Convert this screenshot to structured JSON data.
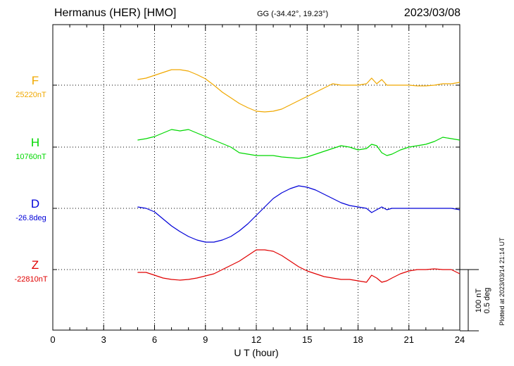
{
  "header": {
    "station": "Hermanus (HER)  [HMO]",
    "coords": "GG (-34.42°,  19.23°)",
    "date": "2023/03/08"
  },
  "scale_bar": {
    "line1": "100 nT",
    "line2": "0.5 deg"
  },
  "plotted_note": "Plotted at 2023/03/14 21:14 UT",
  "chart_data": {
    "type": "line",
    "xlabel": "U T (hour)",
    "xlim": [
      0,
      24
    ],
    "xticks": [
      "0",
      "3",
      "6",
      "9",
      "12",
      "15",
      "18",
      "21",
      "24"
    ],
    "grid": true,
    "series": [
      {
        "name": "F",
        "baseline_label": "25220nT",
        "color": "#f0a800",
        "x": [
          5,
          5.5,
          6,
          6.5,
          7,
          7.5,
          8,
          8.5,
          9,
          9.5,
          10,
          10.5,
          11,
          11.5,
          12,
          12.5,
          13,
          13.5,
          14,
          14.5,
          15,
          15.5,
          16,
          16.5,
          17,
          17.5,
          18,
          18.5,
          18.8,
          19.1,
          19.4,
          19.7,
          20,
          20.5,
          21,
          21.5,
          22,
          22.5,
          23,
          23.5,
          24
        ],
        "y": [
          8,
          10,
          14,
          18,
          22,
          22,
          20,
          15,
          9,
          0,
          -10,
          -18,
          -26,
          -32,
          -37,
          -38,
          -37,
          -34,
          -28,
          -22,
          -16,
          -10,
          -4,
          2,
          0,
          0,
          0,
          2,
          10,
          2,
          8,
          0,
          0,
          0,
          0,
          -1,
          -1,
          0,
          2,
          2,
          4
        ]
      },
      {
        "name": "H",
        "baseline_label": "10760nT",
        "color": "#00d800",
        "x": [
          5,
          5.5,
          6,
          6.5,
          7,
          7.5,
          8,
          8.5,
          9,
          9.5,
          10,
          10.5,
          11,
          11.5,
          12,
          12.5,
          13,
          13.5,
          14,
          14.5,
          15,
          15.5,
          16,
          16.5,
          17,
          17.5,
          18,
          18.5,
          18.8,
          19.1,
          19.4,
          19.7,
          20,
          20.5,
          21,
          21.5,
          22,
          22.5,
          23,
          23.5,
          24
        ],
        "y": [
          10,
          12,
          15,
          20,
          25,
          23,
          25,
          20,
          15,
          10,
          5,
          0,
          -8,
          -10,
          -12,
          -12,
          -12,
          -14,
          -15,
          -16,
          -14,
          -10,
          -6,
          -2,
          2,
          0,
          -4,
          -2,
          4,
          2,
          -8,
          -12,
          -10,
          -4,
          0,
          2,
          4,
          8,
          14,
          12,
          10
        ]
      },
      {
        "name": "D",
        "baseline_label": "-26.8deg",
        "color": "#0000d8",
        "x": [
          5,
          5.5,
          6,
          6.5,
          7,
          7.5,
          8,
          8.5,
          9,
          9.5,
          10,
          10.5,
          11,
          11.5,
          12,
          12.5,
          13,
          13.5,
          14,
          14.5,
          15,
          15.5,
          16,
          16.5,
          17,
          17.5,
          18,
          18.5,
          18.8,
          19.1,
          19.4,
          19.7,
          20,
          20.5,
          21,
          21.5,
          22,
          22.5,
          23,
          23.5,
          24
        ],
        "y": [
          2,
          0,
          -5,
          -15,
          -25,
          -33,
          -40,
          -45,
          -48,
          -48,
          -45,
          -40,
          -32,
          -22,
          -10,
          2,
          14,
          22,
          28,
          32,
          30,
          26,
          20,
          14,
          8,
          4,
          2,
          0,
          -6,
          -2,
          2,
          -2,
          0,
          0,
          0,
          0,
          0,
          0,
          0,
          0,
          -2
        ]
      },
      {
        "name": "Z",
        "baseline_label": "-22810nT",
        "color": "#e00000",
        "x": [
          5,
          5.5,
          6,
          6.5,
          7,
          7.5,
          8,
          8.5,
          9,
          9.5,
          10,
          10.5,
          11,
          11.5,
          12,
          12.5,
          13,
          13.5,
          14,
          14.5,
          15,
          15.5,
          16,
          16.5,
          17,
          17.5,
          18,
          18.5,
          18.8,
          19.1,
          19.4,
          19.7,
          20,
          20.5,
          21,
          21.5,
          22,
          22.5,
          23,
          23.5,
          24
        ],
        "y": [
          -4,
          -4,
          -8,
          -12,
          -14,
          -15,
          -14,
          -12,
          -9,
          -6,
          0,
          6,
          12,
          20,
          28,
          28,
          26,
          20,
          12,
          4,
          -2,
          -6,
          -10,
          -12,
          -14,
          -14,
          -16,
          -18,
          -8,
          -12,
          -18,
          -16,
          -12,
          -6,
          -2,
          0,
          0,
          1,
          0,
          0,
          -6
        ]
      }
    ]
  }
}
